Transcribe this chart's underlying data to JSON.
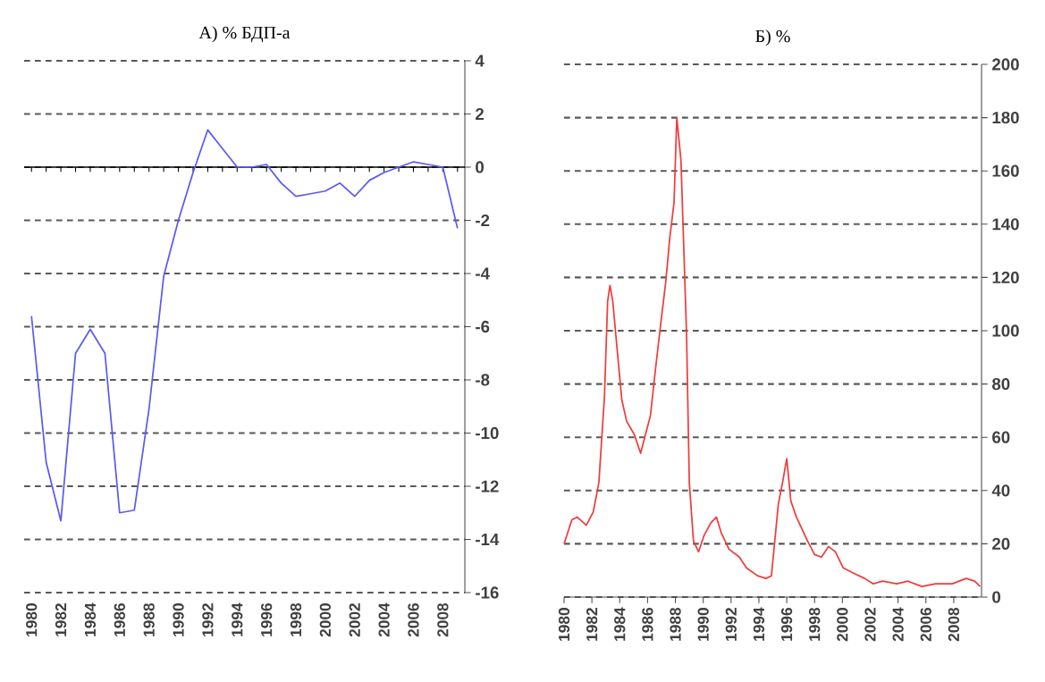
{
  "chart_data": [
    {
      "type": "line",
      "title": "А) % БДП-а",
      "x": [
        1980,
        1981,
        1982,
        1983,
        1984,
        1985,
        1986,
        1987,
        1988,
        1989,
        1990,
        1991,
        1992,
        1993,
        1994,
        1995,
        1996,
        1997,
        1998,
        1999,
        2000,
        2001,
        2002,
        2003,
        2004,
        2005,
        2006,
        2007,
        2008,
        2009
      ],
      "series": [
        {
          "color": "#5b5bf0",
          "values": [
            -5.6,
            -11.1,
            -13.3,
            -7.0,
            -6.1,
            -7.0,
            -13.0,
            -12.9,
            -9.1,
            -4.1,
            -2.0,
            -0.2,
            1.4,
            0.7,
            0.0,
            0.0,
            0.1,
            -0.6,
            -1.1,
            -1.0,
            -0.9,
            -0.6,
            -1.1,
            -0.5,
            -0.2,
            0.0,
            0.2,
            0.1,
            0.0,
            -2.3
          ]
        }
      ],
      "xlim": [
        1979.5,
        2009.5
      ],
      "ylim": [
        -16,
        4
      ],
      "xticks": [
        1980,
        1982,
        1984,
        1986,
        1988,
        1990,
        1992,
        1994,
        1996,
        1998,
        2000,
        2002,
        2004,
        2006,
        2008
      ],
      "yticks": [
        -16,
        -14,
        -12,
        -10,
        -8,
        -6,
        -4,
        -2,
        0,
        2,
        4
      ],
      "grid": "y",
      "marker": "none",
      "line_style": "solid",
      "ref_lines": [
        {
          "axis": "y",
          "value": 0,
          "color": "#000000",
          "line_style": "solid"
        }
      ]
    },
    {
      "type": "line",
      "title": "Б)  %",
      "x": [
        1980.0,
        1980.56,
        1980.95,
        1981.6,
        1982.1,
        1982.5,
        1982.9,
        1983.13,
        1983.3,
        1983.5,
        1983.85,
        1984.15,
        1984.5,
        1985.05,
        1985.5,
        1985.8,
        1986.2,
        1986.6,
        1987.0,
        1987.3,
        1987.6,
        1987.9,
        1988.1,
        1988.4,
        1988.8,
        1989.0,
        1989.3,
        1989.67,
        1990.05,
        1990.56,
        1990.95,
        1991.3,
        1991.85,
        1992.6,
        1993.1,
        1993.9,
        1994.5,
        1994.9,
        1995.4,
        1995.7,
        1996.0,
        1996.3,
        1996.7,
        1997.5,
        1998.0,
        1998.5,
        1999.0,
        1999.5,
        2000.05,
        2000.8,
        2001.6,
        2002.2,
        2002.9,
        2003.9,
        2004.7,
        2005.7,
        2006.7,
        2007.9,
        2008.9,
        2009.5,
        2009.9
      ],
      "series": [
        {
          "color": "#f03c3c",
          "values": [
            20,
            29,
            30,
            27,
            32,
            43,
            75,
            111,
            117,
            111,
            91,
            74,
            66,
            61,
            54,
            60,
            68,
            87,
            105,
            118,
            135,
            148,
            180,
            164,
            99,
            43,
            21,
            17,
            23,
            28,
            30,
            24,
            18,
            15,
            11,
            8,
            7,
            8,
            35,
            43,
            52,
            36,
            30,
            21,
            16,
            15,
            19,
            17,
            11,
            9,
            7,
            5,
            6,
            5,
            6,
            4,
            5,
            5,
            7,
            6,
            4
          ]
        }
      ],
      "xlim": [
        1980,
        2010
      ],
      "ylim": [
        0,
        200
      ],
      "xticks": [
        1980,
        1982,
        1984,
        1986,
        1988,
        1990,
        1992,
        1994,
        1996,
        1998,
        2000,
        2002,
        2004,
        2006,
        2008
      ],
      "yticks": [
        0,
        20,
        40,
        60,
        80,
        100,
        120,
        140,
        160,
        180,
        200
      ],
      "grid": "y",
      "marker": "none",
      "line_style": "solid"
    }
  ]
}
